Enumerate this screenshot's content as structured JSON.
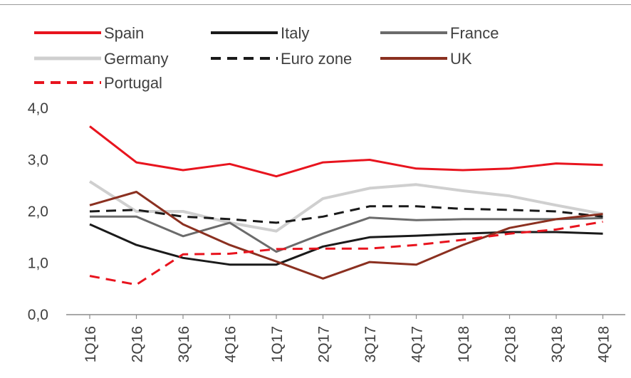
{
  "chart_data": {
    "type": "line",
    "title": "",
    "xlabel": "",
    "ylabel": "",
    "categories": [
      "1Q16",
      "2Q16",
      "3Q16",
      "4Q16",
      "1Q17",
      "2Q17",
      "3Q17",
      "4Q17",
      "1Q18",
      "2Q18",
      "3Q18",
      "4Q18"
    ],
    "ylim": [
      0,
      4
    ],
    "yticks": [
      "0,0",
      "1,0",
      "2,0",
      "3,0",
      "4,0"
    ],
    "grid": false,
    "legend_position": "top",
    "series": [
      {
        "name": "Spain",
        "color": "#e8141e",
        "dash": "solid",
        "values": [
          3.65,
          2.95,
          2.8,
          2.92,
          2.68,
          2.95,
          3.0,
          2.83,
          2.8,
          2.83,
          2.93,
          2.9
        ]
      },
      {
        "name": "Italy",
        "color": "#1a1a1a",
        "dash": "solid",
        "values": [
          1.75,
          1.35,
          1.1,
          0.97,
          0.97,
          1.32,
          1.5,
          1.53,
          1.57,
          1.6,
          1.6,
          1.57
        ]
      },
      {
        "name": "France",
        "color": "#6b6b6b",
        "dash": "solid",
        "values": [
          1.9,
          1.9,
          1.52,
          1.78,
          1.22,
          1.57,
          1.88,
          1.83,
          1.85,
          1.85,
          1.85,
          1.87
        ]
      },
      {
        "name": "Germany",
        "color": "#cfcfcf",
        "dash": "solid",
        "values": [
          2.58,
          2.0,
          2.0,
          1.78,
          1.62,
          2.25,
          2.45,
          2.52,
          2.4,
          2.3,
          2.12,
          1.95
        ]
      },
      {
        "name": "Euro zone",
        "color": "#1a1a1a",
        "dash": "dashed",
        "values": [
          2.0,
          2.03,
          1.9,
          1.85,
          1.78,
          1.9,
          2.1,
          2.1,
          2.05,
          2.03,
          2.0,
          1.9
        ]
      },
      {
        "name": "UK",
        "color": "#8b3020",
        "dash": "solid",
        "values": [
          2.12,
          2.38,
          1.75,
          1.35,
          1.03,
          0.7,
          1.02,
          0.97,
          1.35,
          1.68,
          1.85,
          1.95
        ]
      },
      {
        "name": "Portugal",
        "color": "#e8141e",
        "dash": "dashed",
        "values": [
          0.75,
          0.58,
          1.17,
          1.18,
          1.27,
          1.28,
          1.28,
          1.35,
          1.45,
          1.57,
          1.65,
          1.8
        ]
      }
    ]
  }
}
